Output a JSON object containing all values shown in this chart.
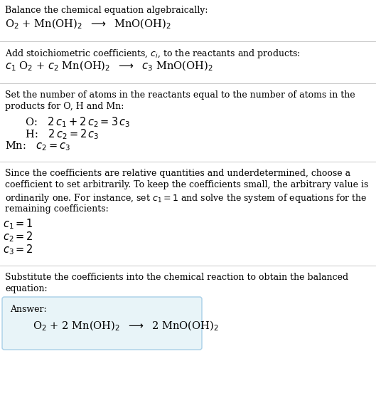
{
  "bg_color": "#ffffff",
  "text_color": "#000000",
  "section_line_color": "#c8c8c8",
  "answer_box_color": "#e8f4f8",
  "answer_box_border": "#a8cfe8",
  "sections": [
    {
      "type": "text_block",
      "lines": [
        {
          "text": "Balance the chemical equation algebraically:",
          "style": "normal"
        },
        {
          "text": "O$_2$ + Mn(OH)$_2$  $\\longrightarrow$  MnO(OH)$_2$",
          "style": "formula"
        }
      ]
    },
    {
      "type": "text_block",
      "lines": [
        {
          "text": "Add stoichiometric coefficients, $c_i$, to the reactants and products:",
          "style": "normal"
        },
        {
          "text": "$c_1$ O$_2$ + $c_2$ Mn(OH)$_2$  $\\longrightarrow$  $c_3$ MnO(OH)$_2$",
          "style": "formula"
        }
      ]
    },
    {
      "type": "text_block",
      "lines": [
        {
          "text": "Set the number of atoms in the reactants equal to the number of atoms in the",
          "style": "normal"
        },
        {
          "text": "products for O, H and Mn:",
          "style": "normal"
        },
        {
          "text": "   O:   $2\\,c_1 + 2\\,c_2 = 3\\,c_3$",
          "style": "equation"
        },
        {
          "text": "   H:   $2\\,c_2 = 2\\,c_3$",
          "style": "equation"
        },
        {
          "text": "Mn:   $c_2 = c_3$",
          "style": "equation"
        }
      ]
    },
    {
      "type": "text_block",
      "lines": [
        {
          "text": "Since the coefficients are relative quantities and underdetermined, choose a",
          "style": "normal"
        },
        {
          "text": "coefficient to set arbitrarily. To keep the coefficients small, the arbitrary value is",
          "style": "normal"
        },
        {
          "text": "ordinarily one. For instance, set $c_1 = 1$ and solve the system of equations for the",
          "style": "normal"
        },
        {
          "text": "remaining coefficients:",
          "style": "normal"
        },
        {
          "text": "$c_1 = 1$",
          "style": "coeff"
        },
        {
          "text": "$c_2 = 2$",
          "style": "coeff"
        },
        {
          "text": "$c_3 = 2$",
          "style": "coeff"
        }
      ]
    },
    {
      "type": "answer_block",
      "intro_lines": [
        {
          "text": "Substitute the coefficients into the chemical reaction to obtain the balanced",
          "style": "normal"
        },
        {
          "text": "equation:",
          "style": "normal"
        }
      ],
      "answer_label": "Answer:",
      "answer_formula": "O$_2$ + 2 Mn(OH)$_2$  $\\longrightarrow$  2 MnO(OH)$_2$"
    }
  ]
}
